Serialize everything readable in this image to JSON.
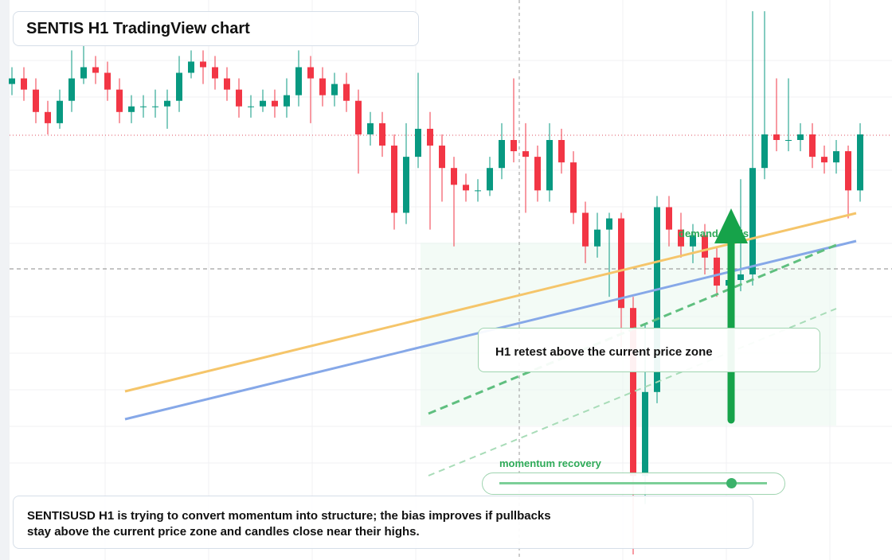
{
  "chart_data": {
    "type": "candlestick",
    "title": "SENTIS H1 TradingView chart",
    "ylim": [
      0,
      100
    ],
    "up_color": "#089981",
    "down_color": "#f23645",
    "open": [
      85,
      86,
      84,
      80,
      78,
      82,
      86,
      88,
      87,
      84,
      80,
      81,
      81,
      81,
      82,
      87,
      89,
      88,
      86,
      84,
      81,
      81,
      82,
      81,
      83,
      88,
      86,
      83,
      85,
      82,
      76,
      78,
      74,
      62,
      72,
      77,
      74,
      70,
      67,
      66,
      66,
      70,
      75,
      73,
      72,
      66,
      75,
      71,
      62,
      56,
      59,
      61,
      45,
      15,
      30,
      63,
      59,
      56,
      58,
      54,
      49,
      50,
      51,
      70,
      76,
      75,
      75,
      76,
      72,
      71,
      73,
      66
    ],
    "high": [
      88,
      88,
      86,
      82,
      84,
      91,
      92,
      90,
      89,
      86,
      83,
      83,
      84,
      84,
      90,
      91,
      91,
      90,
      88,
      86,
      83,
      84,
      84,
      86,
      91,
      90,
      88,
      87,
      87,
      84,
      80,
      80,
      76,
      78,
      87,
      80,
      76,
      72,
      69,
      68,
      72,
      78,
      86,
      78,
      74,
      78,
      77,
      73,
      64,
      62,
      62,
      62,
      47,
      42,
      65,
      65,
      62,
      60,
      60,
      56,
      53,
      68,
      98,
      98,
      86,
      86,
      78,
      78,
      74,
      75,
      74,
      78
    ],
    "low": [
      83,
      82,
      78,
      76,
      77,
      80,
      85,
      85,
      82,
      78,
      78,
      79,
      79,
      77,
      80,
      86,
      85,
      84,
      82,
      79,
      79,
      80,
      79,
      79,
      81,
      78,
      81,
      81,
      80,
      69,
      74,
      72,
      59,
      60,
      70,
      59,
      64,
      56,
      64,
      64,
      65,
      68,
      71,
      62,
      64,
      64,
      69,
      60,
      53,
      54,
      47,
      38,
      1,
      10,
      28,
      56,
      54,
      53,
      51,
      47,
      47,
      48,
      49,
      68,
      73,
      73,
      73,
      70,
      69,
      69,
      61,
      64
    ],
    "close": [
      86,
      84,
      80,
      78,
      82,
      86,
      88,
      87,
      84,
      80,
      81,
      81,
      81,
      82,
      87,
      89,
      88,
      86,
      84,
      81,
      81,
      82,
      81,
      83,
      88,
      86,
      83,
      85,
      82,
      76,
      78,
      74,
      62,
      72,
      77,
      74,
      70,
      67,
      66,
      66,
      70,
      75,
      73,
      72,
      66,
      75,
      71,
      62,
      56,
      59,
      61,
      45,
      15,
      30,
      63,
      59,
      56,
      58,
      54,
      49,
      50,
      51,
      70,
      76,
      75,
      75,
      76,
      72,
      71,
      73,
      66,
      76
    ],
    "annotations": {
      "retest": "H1 retest above the current price zone",
      "demand": "demand holds",
      "momentum": "momentum recovery"
    },
    "summary": [
      "SENTISUSD H1 is trying to convert momentum into structure; the bias improves if pullbacks",
      "stay above the current price zone and candles close near their highs."
    ]
  }
}
